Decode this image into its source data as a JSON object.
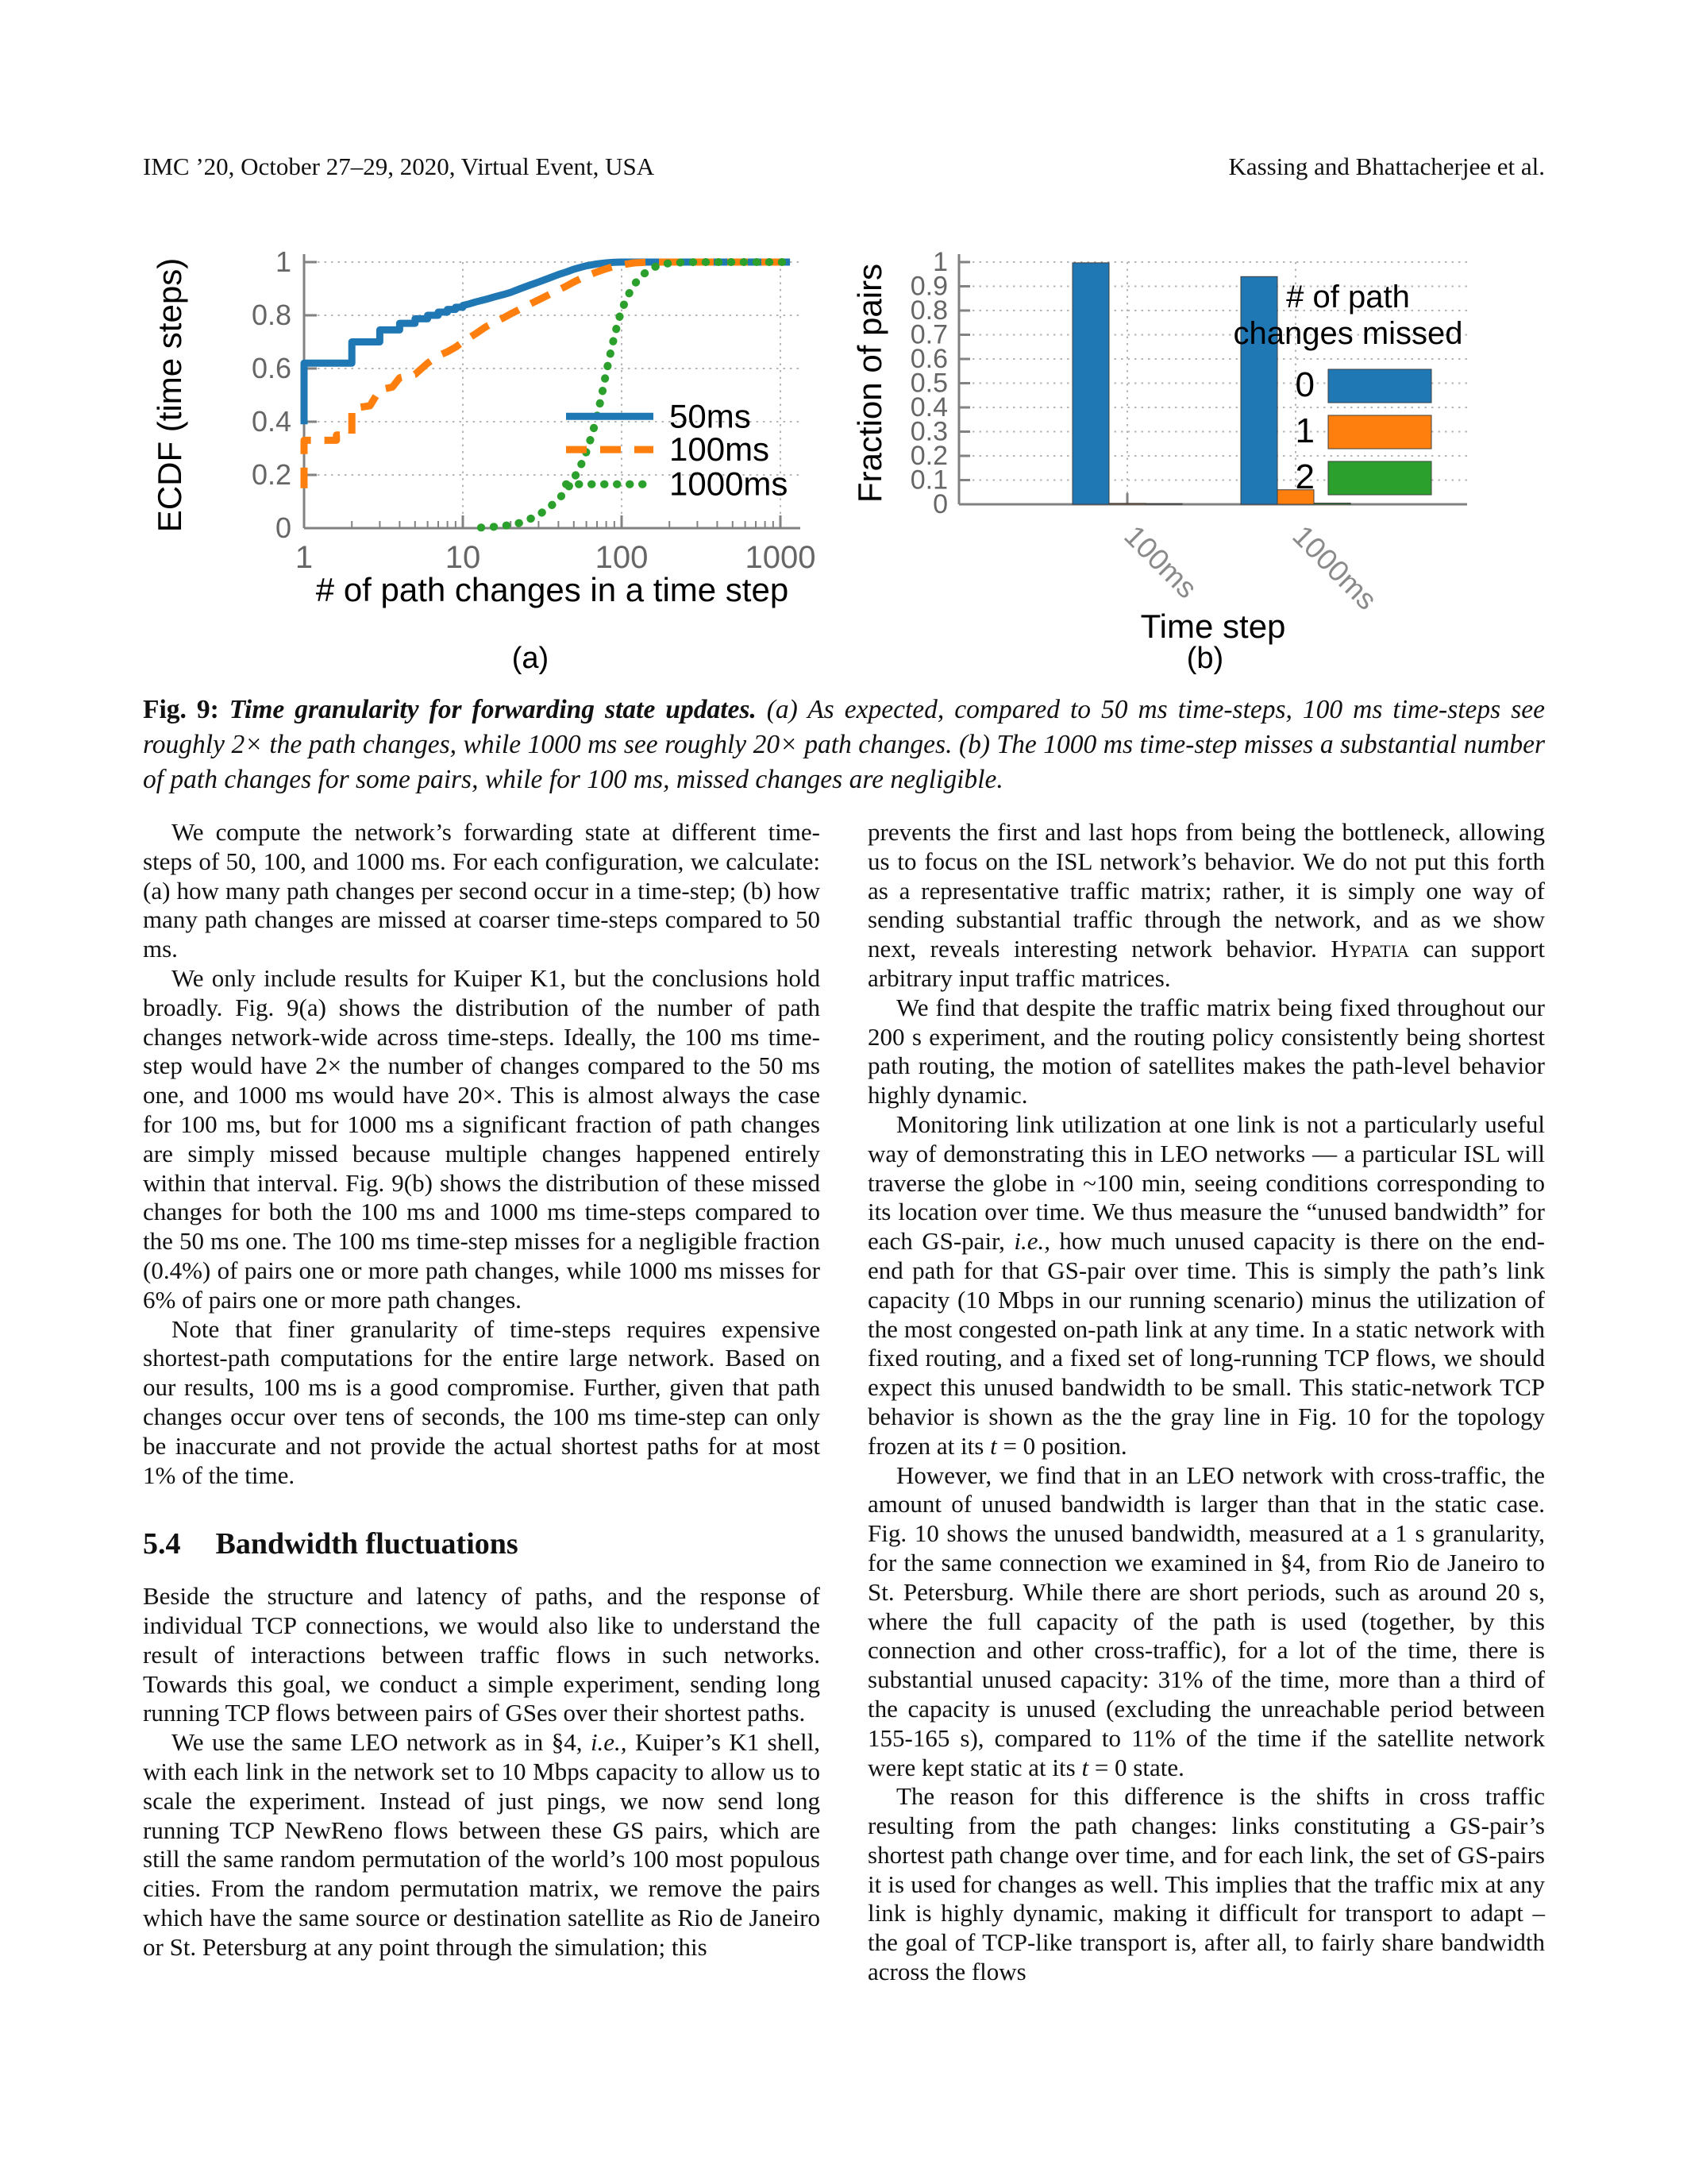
{
  "header": {
    "left": "IMC ’20, October 27–29, 2020, Virtual Event, USA",
    "right": "Kassing and Bhattacherjee et al."
  },
  "figure": {
    "caption": {
      "prefix": "Fig. 9:",
      "title": " Time granularity for forwarding state updates.",
      "body": " (a) As expected, compared to 50 ms time-steps, 100 ms time-steps see roughly 2× the path changes, while 1000 ms see roughly 20× path changes. (b) The 1000 ms time-step misses a substantial number of path changes for some pairs, while for 100 ms, missed changes are negligible."
    }
  },
  "chart_data": [
    {
      "type": "line",
      "subtype": "ecdf-step",
      "sublabel": "(a)",
      "xlabel": "# of path changes in a time step",
      "ylabel": "ECDF (time steps)",
      "xscale": "log",
      "xlim": [
        1,
        1000
      ],
      "ylim": [
        0,
        1
      ],
      "xticks": [
        1,
        10,
        100,
        1000
      ],
      "yticks": [
        0,
        0.2,
        0.4,
        0.6,
        0.8,
        1
      ],
      "yticklabels": [
        "0",
        "0.2",
        "0.4",
        "0.6",
        "0.8",
        "1"
      ],
      "grid": true,
      "legend_position": "center-right",
      "legend_rows_y": [
        0.42,
        0.295,
        0.165
      ],
      "series": [
        {
          "name": "50ms",
          "color": "#1f77b4",
          "dash": "solid",
          "points": [
            [
              1,
              0.39
            ],
            [
              1,
              0.62
            ],
            [
              2,
              0.62
            ],
            [
              2,
              0.7
            ],
            [
              3,
              0.7
            ],
            [
              3,
              0.745
            ],
            [
              4,
              0.745
            ],
            [
              4,
              0.77
            ],
            [
              5,
              0.77
            ],
            [
              5,
              0.787
            ],
            [
              6,
              0.787
            ],
            [
              6,
              0.8
            ],
            [
              7,
              0.8
            ],
            [
              7,
              0.812
            ],
            [
              8,
              0.812
            ],
            [
              8,
              0.822
            ],
            [
              9,
              0.822
            ],
            [
              9,
              0.83
            ],
            [
              10,
              0.83
            ],
            [
              10,
              0.837
            ],
            [
              11,
              0.843
            ],
            [
              12,
              0.85
            ],
            [
              14,
              0.86
            ],
            [
              16,
              0.87
            ],
            [
              18,
              0.878
            ],
            [
              20,
              0.886
            ],
            [
              23,
              0.9
            ],
            [
              26,
              0.912
            ],
            [
              30,
              0.925
            ],
            [
              35,
              0.94
            ],
            [
              40,
              0.953
            ],
            [
              45,
              0.963
            ],
            [
              50,
              0.973
            ],
            [
              55,
              0.98
            ],
            [
              60,
              0.986
            ],
            [
              70,
              0.993
            ],
            [
              80,
              0.997
            ],
            [
              90,
              0.999
            ],
            [
              100,
              1.0
            ],
            [
              1150,
              1.0
            ]
          ]
        },
        {
          "name": "100ms",
          "color": "#ff7f0e",
          "dash": "dashed",
          "points": [
            [
              1,
              0.15
            ],
            [
              1,
              0.33
            ],
            [
              1.6,
              0.33
            ],
            [
              1.6,
              0.35
            ],
            [
              2,
              0.35
            ],
            [
              2,
              0.45
            ],
            [
              2.6,
              0.46
            ],
            [
              3,
              0.52
            ],
            [
              3.6,
              0.53
            ],
            [
              4,
              0.565
            ],
            [
              5,
              0.578
            ],
            [
              6,
              0.62
            ],
            [
              7,
              0.648
            ],
            [
              8,
              0.663
            ],
            [
              9,
              0.68
            ],
            [
              10,
              0.7
            ],
            [
              12,
              0.73
            ],
            [
              14,
              0.757
            ],
            [
              16,
              0.775
            ],
            [
              18,
              0.79
            ],
            [
              20,
              0.805
            ],
            [
              25,
              0.835
            ],
            [
              30,
              0.858
            ],
            [
              35,
              0.878
            ],
            [
              40,
              0.895
            ],
            [
              45,
              0.91
            ],
            [
              50,
              0.925
            ],
            [
              60,
              0.948
            ],
            [
              70,
              0.963
            ],
            [
              80,
              0.975
            ],
            [
              90,
              0.984
            ],
            [
              100,
              0.99
            ],
            [
              120,
              0.997
            ],
            [
              150,
              1.0
            ],
            [
              1150,
              1.0
            ]
          ]
        },
        {
          "name": "1000ms",
          "color": "#2ca02c",
          "dash": "dotted",
          "points": [
            [
              13,
              0.002
            ],
            [
              15,
              0.004
            ],
            [
              17,
              0.007
            ],
            [
              20,
              0.012
            ],
            [
              23,
              0.02
            ],
            [
              26,
              0.032
            ],
            [
              30,
              0.05
            ],
            [
              34,
              0.072
            ],
            [
              38,
              0.096
            ],
            [
              42,
              0.122
            ],
            [
              46,
              0.152
            ],
            [
              50,
              0.186
            ],
            [
              55,
              0.232
            ],
            [
              60,
              0.287
            ],
            [
              65,
              0.35
            ],
            [
              70,
              0.42
            ],
            [
              75,
              0.5
            ],
            [
              80,
              0.585
            ],
            [
              85,
              0.657
            ],
            [
              90,
              0.72
            ],
            [
              95,
              0.775
            ],
            [
              100,
              0.82
            ],
            [
              110,
              0.876
            ],
            [
              120,
              0.915
            ],
            [
              130,
              0.942
            ],
            [
              145,
              0.966
            ],
            [
              160,
              0.981
            ],
            [
              180,
              0.991
            ],
            [
              200,
              0.996
            ],
            [
              250,
              0.9995
            ],
            [
              300,
              1.0
            ],
            [
              1150,
              1.0
            ]
          ]
        }
      ]
    },
    {
      "type": "bar",
      "sublabel": "(b)",
      "xlabel": "Time step",
      "ylabel": "Fraction of pairs",
      "ylim": [
        0,
        1
      ],
      "yticks": [
        0,
        0.1,
        0.2,
        0.3,
        0.4,
        0.5,
        0.6,
        0.7,
        0.8,
        0.9,
        1
      ],
      "yticklabels": [
        "0",
        "0.1",
        "0.2",
        "0.3",
        "0.4",
        "0.5",
        "0.6",
        "0.7",
        "0.8",
        "0.9",
        "1"
      ],
      "categories": [
        "100ms",
        "1000ms"
      ],
      "grid": true,
      "legend_title_lines": [
        "# of path",
        "changes missed"
      ],
      "series": [
        {
          "name": "0",
          "color": "#1f77b4",
          "values": [
            0.997,
            0.94
          ]
        },
        {
          "name": "1",
          "color": "#ff7f0e",
          "values": [
            0.004,
            0.06
          ]
        },
        {
          "name": "2",
          "color": "#2ca02c",
          "values": [
            0.002,
            0.005
          ]
        }
      ]
    }
  ],
  "body": {
    "left_column": [
      {
        "indent": true,
        "runs": [
          {
            "t": "We compute the network’s forwarding state at different time-steps of 50, 100, and 1000 ms. For each configuration, we calculate: (a) how many path changes per second occur in a time-step; (b) how many path changes are missed at coarser time-steps compared to 50 ms."
          }
        ]
      },
      {
        "indent": true,
        "runs": [
          {
            "t": "We only include results for Kuiper K1, but the conclusions hold broadly. Fig. 9(a) shows the distribution of the number of path changes network-wide across time-steps. Ideally, the 100 ms time-step would have 2× the number of changes compared to the 50 ms one, and 1000 ms would have 20×. This is almost always the case for 100 ms, but for 1000 ms a significant fraction of path changes are simply missed because multiple changes happened entirely within that interval. Fig. 9(b) shows the distribution of these missed changes for both the 100 ms and 1000 ms time-steps compared to the 50 ms one. The 100 ms time-step misses for a negligible fraction (0.4%) of pairs one or more path changes, while 1000 ms misses for 6% of pairs one or more path changes."
          }
        ]
      },
      {
        "indent": true,
        "runs": [
          {
            "t": "Note that finer granularity of time-steps requires expensive shortest-path computations for the entire large network. Based on our results, 100 ms is a good compromise. Further, given that path changes occur over tens of seconds, the 100 ms time-step can only be inaccurate and not provide the actual shortest paths for at most 1% of the time."
          }
        ]
      },
      {
        "h": true,
        "num": "5.4",
        "title": "Bandwidth fluctuations"
      },
      {
        "indent": false,
        "runs": [
          {
            "t": "Beside the structure and latency of paths, and the response of individual TCP connections, we would also like to understand the result of interactions between traffic flows in such networks. Towards this goal, we conduct a simple experiment, sending long running TCP flows between pairs of GSes over their shortest paths."
          }
        ]
      },
      {
        "indent": true,
        "runs": [
          {
            "t": "We use the same LEO network as in §4, "
          },
          {
            "t": "i.e.,",
            "s": "i"
          },
          {
            "t": " Kuiper’s K1 shell, with each link in the network set to 10 Mbps capacity to allow us to scale the experiment. Instead of just pings, we now send long running TCP NewReno flows between these GS pairs, which are still the same random permutation of the world’s 100 most populous cities. From the random permutation matrix, we remove the pairs which have the same source or destination satellite as Rio de Janeiro or St. Petersburg at any point through the simulation; this"
          }
        ]
      }
    ],
    "right_column": [
      {
        "indent": false,
        "runs": [
          {
            "t": "prevents the first and last hops from being the bottleneck, allowing us to focus on the ISL network’s behavior. We do not put this forth as a representative traffic matrix; rather, it is simply one way of sending substantial traffic through the network, and as we show next, reveals interesting network behavior. "
          },
          {
            "t": "Hypatia",
            "s": "sc"
          },
          {
            "t": " can support arbitrary input traffic matrices."
          }
        ]
      },
      {
        "indent": true,
        "runs": [
          {
            "t": "We find that despite the traffic matrix being fixed throughout our 200 s experiment, and the routing policy consistently being shortest path routing, the motion of satellites makes the path-level behavior highly dynamic."
          }
        ]
      },
      {
        "indent": true,
        "runs": [
          {
            "t": "Monitoring link utilization at one link is not a particularly useful way of demonstrating this in LEO networks — a particular ISL will traverse the globe in ~100 min, seeing conditions corresponding to its location over time. We thus measure the “unused bandwidth” for each GS-pair, "
          },
          {
            "t": "i.e.,",
            "s": "i"
          },
          {
            "t": " how much unused capacity is there on the end-end path for that GS-pair over time. This is simply the path’s link capacity (10 Mbps in our running scenario) minus the utilization of the most congested on-path link at any time. In a static network with fixed routing, and a fixed set of long-running TCP flows, we should expect this unused bandwidth to be small. This static-network TCP behavior is shown as the the gray line in Fig. 10 for the topology frozen at its "
          },
          {
            "t": "t",
            "s": "i"
          },
          {
            "t": " = 0 position."
          }
        ]
      },
      {
        "indent": true,
        "runs": [
          {
            "t": "However, we find that in an LEO network with cross-traffic, the amount of unused bandwidth is larger than that in the static case. Fig. 10 shows the unused bandwidth, measured at a 1 s granularity, for the same connection we examined in §4, from Rio de Janeiro to St. Petersburg. While there are short periods, such as around 20 s, where the full capacity of the path is used (together, by this connection and other cross-traffic), for a lot of the time, there is substantial unused capacity: 31% of the time, more than a third of the capacity is unused (excluding the unreachable period between 155-165 s), compared to 11% of the time if the satellite network were kept static at its "
          },
          {
            "t": "t",
            "s": "i"
          },
          {
            "t": " = 0 state."
          }
        ]
      },
      {
        "indent": true,
        "runs": [
          {
            "t": "The reason for this difference is the shifts in cross traffic resulting from the path changes: links constituting a GS-pair’s shortest path change over time, and for each link, the set of GS-pairs it is used for changes as well. This implies that the traffic mix at any link is highly dynamic, making it difficult for transport to adapt – the goal of TCP-like transport is, after all, to fairly share bandwidth across the flows"
          }
        ]
      }
    ]
  }
}
